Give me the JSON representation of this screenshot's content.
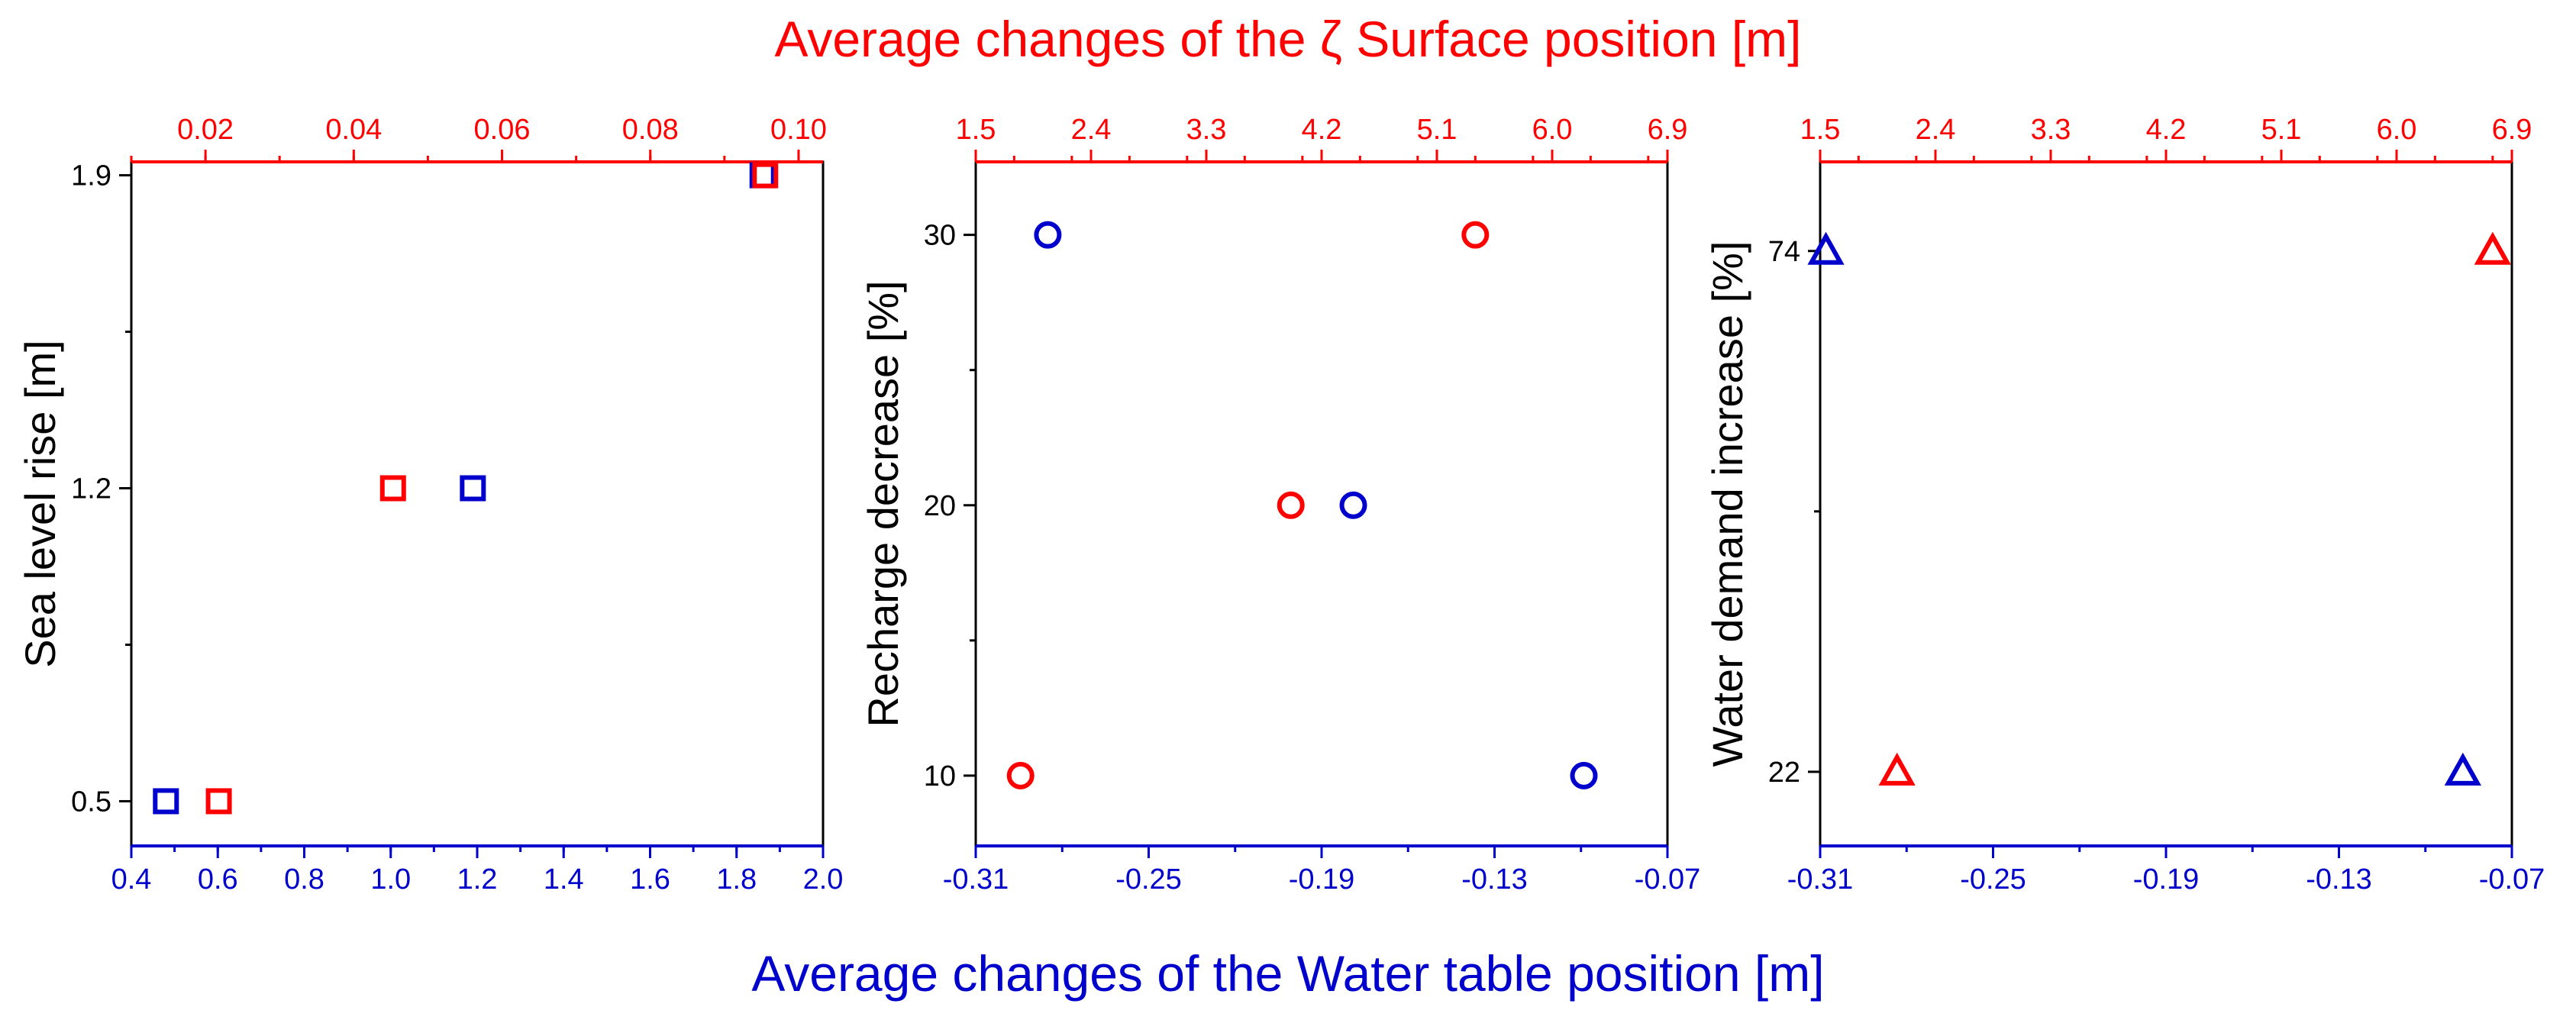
{
  "figure": {
    "top_title": "Average changes of the ζ Surface position [m]",
    "bottom_title": "Average changes of the Water table position [m]"
  },
  "colors": {
    "zeta_surface": "#ff0000",
    "water_table": "#0000cc",
    "frame": "#000000"
  },
  "chart_data": [
    {
      "type": "scatter",
      "panel": "sea-level",
      "marker": "square",
      "ylabel": "Sea level rise [m]",
      "ylim": [
        0.4,
        1.93
      ],
      "y_ticks": [
        0.5,
        1.2,
        1.9
      ],
      "y_tick_labels": [
        "0.5",
        "1.2",
        "1.9"
      ],
      "x_bottom": {
        "label": "Average changes of the Water table position [m]",
        "lim": [
          0.4,
          2.0
        ],
        "ticks": [
          0.4,
          0.6,
          0.8,
          1.0,
          1.2,
          1.4,
          1.6,
          1.8,
          2.0
        ],
        "tick_labels": [
          "0.4",
          "0.6",
          "0.8",
          "1.0",
          "1.2",
          "1.4",
          "1.6",
          "1.8",
          "2.0"
        ],
        "minor": 0.1
      },
      "x_top": {
        "label": "Average changes of the ζ Surface position [m]",
        "lim": [
          0.01,
          0.1033
        ],
        "ticks": [
          0.02,
          0.04,
          0.06,
          0.08,
          0.1
        ],
        "tick_labels": [
          "0.02",
          "0.04",
          "0.06",
          "0.08",
          "0.10"
        ],
        "minor": 0.01
      },
      "series": [
        {
          "name": "Water table position",
          "axis": "bottom",
          "color": "#0000cc",
          "points": [
            {
              "x": 0.48,
              "y": 0.5
            },
            {
              "x": 1.19,
              "y": 1.2
            },
            {
              "x": 1.86,
              "y": 1.9
            }
          ]
        },
        {
          "name": "ζ Surface position",
          "axis": "top",
          "color": "#ff0000",
          "points": [
            {
              "x": 0.0218,
              "y": 0.5
            },
            {
              "x": 0.0453,
              "y": 1.2
            },
            {
              "x": 0.0955,
              "y": 1.9
            }
          ]
        }
      ]
    },
    {
      "type": "scatter",
      "panel": "recharge",
      "marker": "circle",
      "ylabel": "Recharge decrease [%]",
      "ylim": [
        7.4,
        32.7
      ],
      "y_ticks": [
        10,
        20,
        30
      ],
      "y_tick_labels": [
        "10",
        "20",
        "30"
      ],
      "x_bottom": {
        "label": "Average changes of the Water table position [m]",
        "lim": [
          -0.31,
          -0.07
        ],
        "ticks": [
          -0.31,
          -0.25,
          -0.19,
          -0.13,
          -0.07
        ],
        "tick_labels": [
          "-0.31",
          "-0.25",
          "-0.19",
          "-0.13",
          "-0.07"
        ],
        "minor": 0.03
      },
      "x_top": {
        "label": "Average changes of the ζ Surface position [m]",
        "lim": [
          1.5,
          6.9
        ],
        "ticks": [
          1.5,
          2.4,
          3.3,
          4.2,
          5.1,
          6.0,
          6.9
        ],
        "tick_labels": [
          "1.5",
          "2.4",
          "3.3",
          "4.2",
          "5.1",
          "6.0",
          "6.9"
        ],
        "minor": 0.45
      },
      "series": [
        {
          "name": "Water table position",
          "axis": "bottom",
          "color": "#0000cc",
          "points": [
            {
              "x": -0.285,
              "y": 30
            },
            {
              "x": -0.179,
              "y": 20
            },
            {
              "x": -0.099,
              "y": 10
            }
          ]
        },
        {
          "name": "ζ Surface position",
          "axis": "top",
          "color": "#ff0000",
          "points": [
            {
              "x": 1.85,
              "y": 10
            },
            {
              "x": 3.96,
              "y": 20
            },
            {
              "x": 5.4,
              "y": 30
            }
          ]
        }
      ]
    },
    {
      "type": "scatter",
      "panel": "water-demand",
      "marker": "triangle",
      "ylabel": "Water demand increase [%]",
      "ylim": [
        14.6,
        82.9
      ],
      "y_ticks": [
        22,
        74
      ],
      "y_tick_labels": [
        "22",
        "74"
      ],
      "x_bottom": {
        "label": "Average changes of the Water table position [m]",
        "lim": [
          -0.31,
          -0.07
        ],
        "ticks": [
          -0.31,
          -0.25,
          -0.19,
          -0.13,
          -0.07
        ],
        "tick_labels": [
          "-0.31",
          "-0.25",
          "-0.19",
          "-0.13",
          "-0.07"
        ],
        "minor": 0.03
      },
      "x_top": {
        "label": "Average changes of the ζ Surface position [m]",
        "lim": [
          1.5,
          6.9
        ],
        "ticks": [
          1.5,
          2.4,
          3.3,
          4.2,
          5.1,
          6.0,
          6.9
        ],
        "tick_labels": [
          "1.5",
          "2.4",
          "3.3",
          "4.2",
          "5.1",
          "6.0",
          "6.9"
        ],
        "minor": 0.45
      },
      "series": [
        {
          "name": "Water table position",
          "axis": "bottom",
          "color": "#0000cc",
          "points": [
            {
              "x": -0.308,
              "y": 74
            },
            {
              "x": -0.087,
              "y": 22
            }
          ]
        },
        {
          "name": "ζ Surface position",
          "axis": "top",
          "color": "#ff0000",
          "points": [
            {
              "x": 2.1,
              "y": 22
            },
            {
              "x": 6.75,
              "y": 74
            }
          ]
        }
      ]
    }
  ]
}
